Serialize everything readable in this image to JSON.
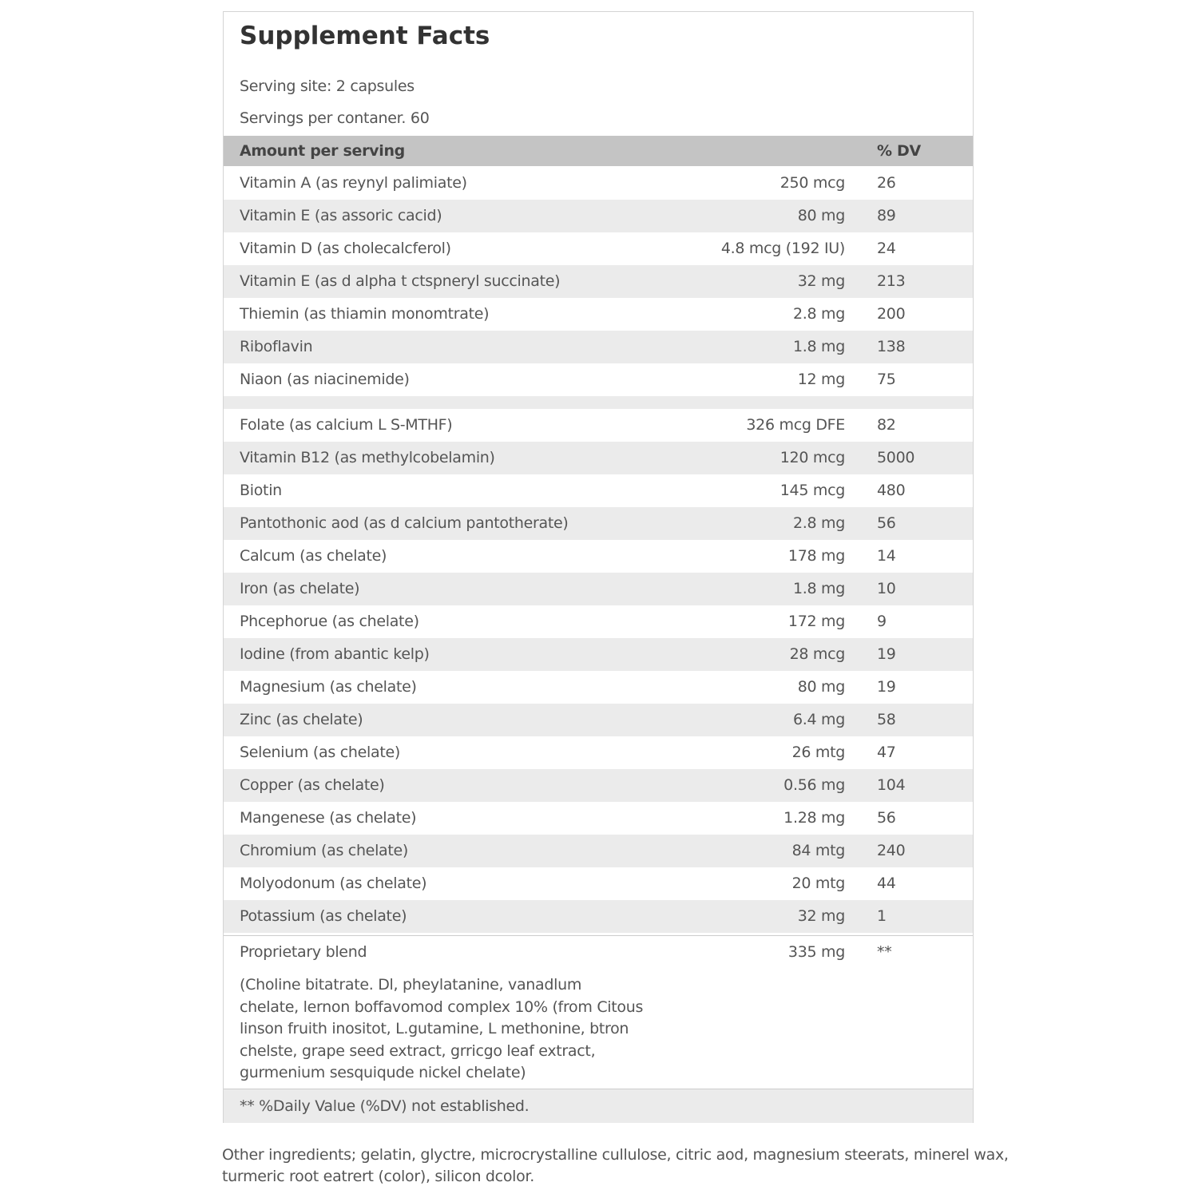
{
  "header": {
    "title": "Supplement Facts",
    "serving_size": "Serving site: 2 capsules",
    "servings_per_container": "Servings per contaner. 60"
  },
  "table": {
    "header": [
      "Amount per serving",
      "% DV"
    ],
    "groups": [
      [
        [
          "Vitamin A (as reynyl palimiate)",
          "250 mcg",
          "26"
        ],
        [
          "Vitamin E (as assoric cacid)",
          "80 mg",
          "89"
        ],
        [
          "Vitamin D (as cholecalcferol)",
          "4.8 mcg (192 IU)",
          "24"
        ],
        [
          "Vitamin E (as d alpha t ctspneryl succinate)",
          "32 mg",
          "213"
        ],
        [
          "Thiemin (as thiamin monomtrate)",
          "2.8 mg",
          "200"
        ],
        [
          "Riboflavin",
          "1.8 mg",
          "138"
        ],
        [
          "Niaon (as niacinemide)",
          "12 mg",
          "75"
        ]
      ],
      [
        [
          "Folate (as calcium L S-MTHF)",
          "326 mcg DFE",
          "82"
        ],
        [
          "Vitamin B12 (as methylcobelamin)",
          "120 mcg",
          "5000"
        ],
        [
          "Biotin",
          "145 mcg",
          "480"
        ],
        [
          "Pantothonic aod (as d calcium pantotherate)",
          "2.8 mg",
          "56"
        ],
        [
          "Calcum (as chelate)",
          "178 mg",
          "14"
        ],
        [
          "Iron (as chelate)",
          "1.8 mg",
          "10"
        ],
        [
          "Phcephorue (as chelate)",
          "172 mg",
          "9"
        ],
        [
          "Iodine (from abantic kelp)",
          "28 mcg",
          "19"
        ],
        [
          "Magnesium (as chelate)",
          "80 mg",
          "19"
        ],
        [
          "Zinc (as chelate)",
          "6.4 mg",
          "58"
        ],
        [
          "Selenium (as chelate)",
          "26 mtg",
          "47"
        ],
        [
          "Copper (as chelate)",
          "0.56 mg",
          "104"
        ],
        [
          "Mangenese (as chelate)",
          "1.28 mg",
          "56"
        ],
        [
          "Chromium (as chelate)",
          "84 mtg",
          "240"
        ],
        [
          "Molyodonum (as chelate)",
          "20 mtg",
          "44"
        ],
        [
          "Potassium (as chelate)",
          "32 mg",
          "1"
        ]
      ]
    ],
    "blend": {
      "name": "Proprietary blend",
      "amount": "335 mg",
      "dv": "**",
      "description": [
        "(Choline bitatrate. Dl, pheylatanine, vanadlum",
        "chelate, lernon boffavomod complex 10% (from Citous",
        "linson fruith inositot, L.gutamine, L methonine, btron",
        "chelste, grape seed extract, grricgo leaf extract,",
        "gurmenium sesquiqude nickel chelate)"
      ]
    },
    "footnote": "** %Daily Value (%DV) not established."
  },
  "other_ingredients": [
    "Other ingredients; gelatin, glyctre, microcrystalline cullulose, citric aod, magnesium steerats, minerel wax,",
    "turmeric root eatrert (color), silicon dcolor."
  ]
}
